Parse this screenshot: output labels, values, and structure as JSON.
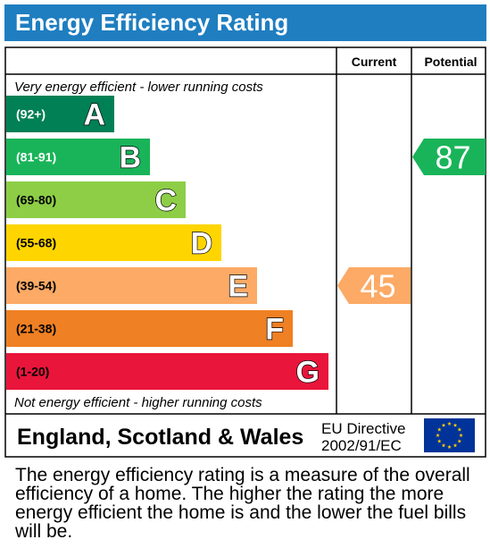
{
  "title": "Energy Efficiency Rating",
  "headers": {
    "current": "Current",
    "potential": "Potential"
  },
  "top_note": "Very energy efficient - lower running costs",
  "bottom_note": "Not energy efficient - higher running costs",
  "footer": {
    "region": "England, Scotland & Wales",
    "directive_line1": "EU Directive",
    "directive_line2": "2002/91/EC"
  },
  "caption": "The energy efficiency rating is a measure of the overall efficiency of a home. The higher the rating the more energy efficient the home is and the lower the fuel bills will be.",
  "chart_data": {
    "type": "bar",
    "categories": [
      "A",
      "B",
      "C",
      "D",
      "E",
      "F",
      "G"
    ],
    "ranges": [
      "(92+)",
      "(81-91)",
      "(69-80)",
      "(55-68)",
      "(39-54)",
      "(21-38)",
      "(1-20)"
    ],
    "range_min": [
      92,
      81,
      69,
      55,
      39,
      21,
      1
    ],
    "colors": [
      "#008054",
      "#19b459",
      "#8dce46",
      "#ffd500",
      "#fcaa65",
      "#ef8023",
      "#e9153b"
    ],
    "range_text_colors": [
      "#ffffff",
      "#ffffff",
      "#000000",
      "#000000",
      "#000000",
      "#000000",
      "#000000"
    ],
    "current": {
      "value": 45,
      "band": "E",
      "color": "#fcaa65"
    },
    "potential": {
      "value": 87,
      "band": "B",
      "color": "#19b459"
    }
  }
}
